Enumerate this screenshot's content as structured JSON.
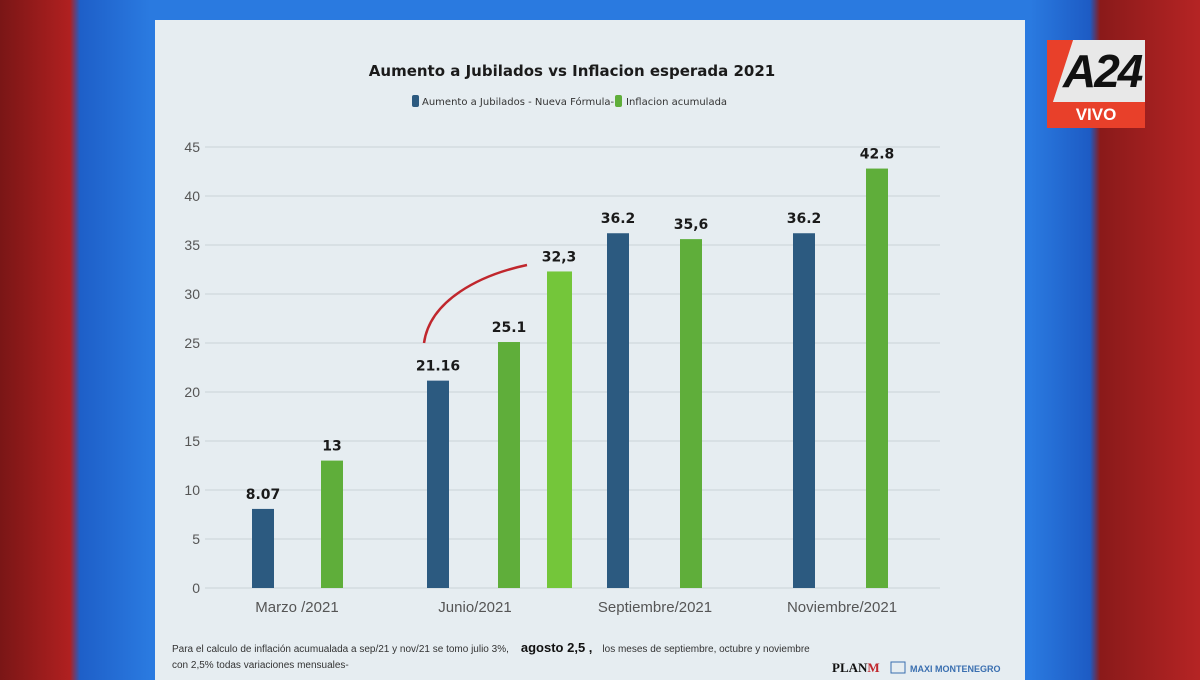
{
  "broadcast": {
    "channel": "A24",
    "live_label": "VIVO"
  },
  "chart_data": {
    "type": "bar",
    "title": "Aumento a Jubilados vs Inflacion esperada 2021",
    "categories": [
      "Marzo /2021",
      "Junio/2021",
      "Septiembre/2021",
      "Noviembre/2021"
    ],
    "series": [
      {
        "name": "Aumento a Jubilados - Nueva Fórmula-",
        "color": "#2c5a80",
        "values": [
          8.07,
          21.16,
          36.2,
          36.2
        ],
        "labels": [
          "8.07",
          "21.16",
          "36.2",
          "36.2"
        ]
      },
      {
        "name": "Inflacion acumulada",
        "color": "#5fae3a",
        "values": [
          13,
          25.1,
          35.6,
          42.8
        ],
        "labels": [
          "13",
          "25.1",
          "35,6",
          "42.8"
        ]
      }
    ],
    "extra_bar": {
      "category": "Junio/2021",
      "value": 32.3,
      "label": "32,3",
      "color": "#74c63a"
    },
    "annotation_arrow": {
      "from": "21.16",
      "to": "32,3",
      "color": "#c0272d"
    },
    "ylim": [
      0,
      45
    ],
    "yticks": [
      0,
      5,
      10,
      15,
      20,
      25,
      30,
      35,
      40,
      45
    ],
    "grid": true,
    "legend": "top"
  },
  "footnote": {
    "line1_a": "Para el calculo de inflación acumualada a sep/21 y nov/21 se tomo julio 3%,",
    "line1_b": "agosto 2,5 ,",
    "line1_c": "los meses de septiembre, octubre y noviembre",
    "line2": "con 2,5% todas variaciones mensuales-"
  },
  "credits": {
    "brand": "PLANM",
    "author": "MAXI MONTENEGRO"
  }
}
